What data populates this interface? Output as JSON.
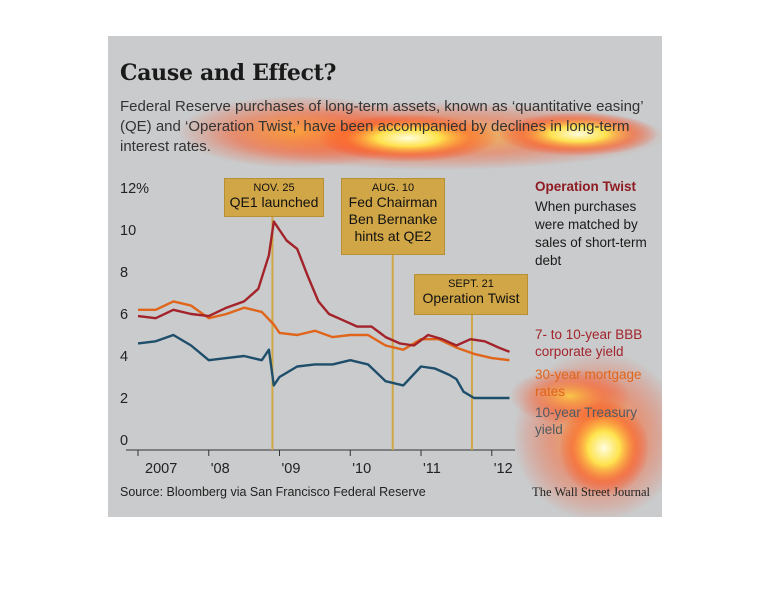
{
  "title": "Cause and Effect?",
  "subtitle": "Federal Reserve purchases of long-term assets, known as ‘quantitative easing’ (QE) and ‘Operation Twist,’ have been accompanied by declines in long-term interest rates.",
  "source": "Source: Bloomberg via San Francisco Federal Reserve",
  "credit": "The Wall Street Journal",
  "operation_twist_note": {
    "title": "Operation Twist",
    "body": "When purchases were matched by sales of short-term debt"
  },
  "callouts": [
    {
      "date": "NOV. 25",
      "label": "QE1 launched"
    },
    {
      "date": "AUG. 10",
      "label": "Fed Chairman Ben Bernanke hints at QE2"
    },
    {
      "date": "SEPT. 21",
      "label": "Operation Twist"
    }
  ],
  "colors": {
    "corporate": "#a3232a",
    "mortgage": "#e0651a",
    "treasury": "#1f4e6b",
    "callout_bg": "#d1a646",
    "background": "#c9cbcc"
  },
  "chart_data": {
    "type": "line",
    "title": "Cause and Effect?",
    "xlabel": "",
    "ylabel": "",
    "x_tick_labels": [
      "2007",
      "'08",
      "'09",
      "'10",
      "'11",
      "'12"
    ],
    "y_tick_labels": [
      "0",
      "2",
      "4",
      "6",
      "8",
      "10",
      "12%"
    ],
    "ylim": [
      0,
      12
    ],
    "xlim": [
      2007.0,
      2012.3
    ],
    "grid": false,
    "legend_placement": "right",
    "events": [
      {
        "x": 2008.9,
        "date": "NOV. 25",
        "label": "QE1 launched"
      },
      {
        "x": 2010.6,
        "date": "AUG. 10",
        "label": "Fed Chairman Ben Bernanke hints at QE2"
      },
      {
        "x": 2011.72,
        "date": "SEPT. 21",
        "label": "Operation Twist"
      }
    ],
    "series": [
      {
        "name": "7- to 10-year BBB corporate yield",
        "x": [
          2007.0,
          2007.25,
          2007.5,
          2007.75,
          2008.0,
          2008.25,
          2008.5,
          2008.7,
          2008.85,
          2008.92,
          2009.0,
          2009.1,
          2009.25,
          2009.4,
          2009.55,
          2009.7,
          2009.9,
          2010.1,
          2010.3,
          2010.5,
          2010.7,
          2010.9,
          2011.1,
          2011.3,
          2011.5,
          2011.7,
          2011.9,
          2012.1,
          2012.25
        ],
        "values": [
          5.9,
          5.8,
          6.2,
          6.0,
          5.9,
          6.3,
          6.6,
          7.2,
          8.8,
          10.4,
          10.0,
          9.5,
          9.1,
          7.8,
          6.6,
          6.0,
          5.7,
          5.4,
          5.4,
          4.9,
          4.6,
          4.5,
          5.0,
          4.8,
          4.5,
          4.8,
          4.7,
          4.4,
          4.2
        ]
      },
      {
        "name": "30-year mortgage rates",
        "x": [
          2007.0,
          2007.25,
          2007.5,
          2007.75,
          2008.0,
          2008.25,
          2008.5,
          2008.75,
          2008.92,
          2009.0,
          2009.25,
          2009.5,
          2009.75,
          2010.0,
          2010.25,
          2010.5,
          2010.75,
          2011.0,
          2011.25,
          2011.5,
          2011.75,
          2012.0,
          2012.25
        ],
        "values": [
          6.2,
          6.2,
          6.6,
          6.4,
          5.8,
          6.0,
          6.3,
          6.1,
          5.5,
          5.1,
          5.0,
          5.2,
          4.9,
          5.0,
          5.0,
          4.5,
          4.3,
          4.8,
          4.8,
          4.4,
          4.1,
          3.9,
          3.8
        ]
      },
      {
        "name": "10-year Treasury yield",
        "x": [
          2007.0,
          2007.25,
          2007.5,
          2007.75,
          2008.0,
          2008.25,
          2008.5,
          2008.75,
          2008.85,
          2008.92,
          2009.0,
          2009.25,
          2009.5,
          2009.75,
          2010.0,
          2010.25,
          2010.5,
          2010.75,
          2011.0,
          2011.2,
          2011.4,
          2011.5,
          2011.6,
          2011.75,
          2012.0,
          2012.25
        ],
        "values": [
          4.6,
          4.7,
          5.0,
          4.5,
          3.8,
          3.9,
          4.0,
          3.8,
          4.3,
          2.6,
          3.0,
          3.5,
          3.6,
          3.6,
          3.8,
          3.6,
          2.8,
          2.6,
          3.5,
          3.4,
          3.1,
          2.9,
          2.3,
          2.0,
          2.0,
          2.0
        ]
      }
    ]
  }
}
